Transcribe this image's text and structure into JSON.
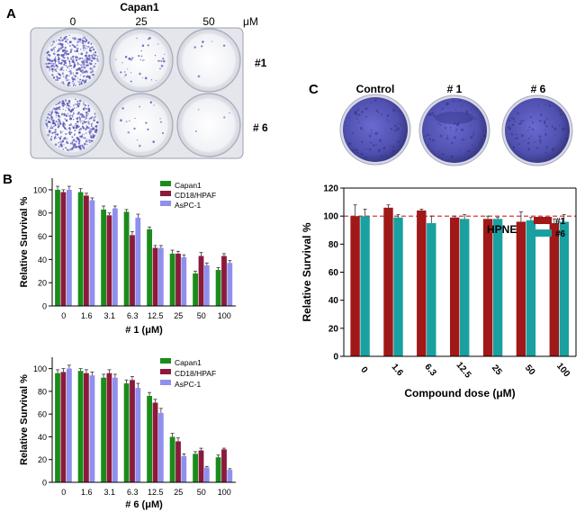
{
  "panels": {
    "A": {
      "letter": "A",
      "cell_line": "Capan1",
      "doses": [
        "0",
        "25",
        "50"
      ],
      "unit": "μM",
      "rows": [
        "#1",
        "# 6"
      ]
    },
    "B": {
      "letter": "B"
    },
    "C": {
      "letter": "C",
      "dish_labels": [
        "Control",
        "# 1",
        "# 6"
      ]
    }
  },
  "colors": {
    "capan1": "#1a8c1a",
    "cd18": "#8b1a3c",
    "aspc1": "#8f8fef",
    "hpne_1": "#a01818",
    "hpne_6": "#1aa0a0",
    "reference_line": "#cc2222",
    "stain": "#5a5ab8"
  },
  "chart_data": [
    {
      "id": "B1",
      "type": "bar",
      "title": "",
      "xlabel": "# 1 (μM)",
      "ylabel": "Relative Survival %",
      "categories": [
        "0",
        "1.6",
        "3.1",
        "6.3",
        "12.5",
        "25",
        "50",
        "100"
      ],
      "ylim": [
        0,
        110
      ],
      "yticks": [
        "0",
        "20",
        "40",
        "60",
        "80",
        "100"
      ],
      "legend": "top-right",
      "series": [
        {
          "name": "Capan1",
          "color": "#1a8c1a",
          "values": [
            100,
            98,
            83,
            81,
            66,
            45,
            28,
            31
          ],
          "errors": [
            3,
            3,
            3,
            2,
            2,
            3,
            2,
            2
          ]
        },
        {
          "name": "CD18/HPAF",
          "color": "#8b1a3c",
          "values": [
            98,
            95,
            78,
            61,
            50,
            45,
            43,
            43
          ],
          "errors": [
            2,
            2,
            2,
            3,
            2,
            2,
            3,
            2
          ]
        },
        {
          "name": "AsPC-1",
          "color": "#8f8fef",
          "values": [
            100,
            91,
            84,
            76,
            50,
            42,
            35,
            37
          ],
          "errors": [
            3,
            2,
            2,
            3,
            2,
            2,
            2,
            2
          ]
        }
      ]
    },
    {
      "id": "B2",
      "type": "bar",
      "title": "",
      "xlabel": "# 6 (μM)",
      "ylabel": "Relative Survival %",
      "categories": [
        "0",
        "1.6",
        "3.1",
        "6.3",
        "12.5",
        "25",
        "50",
        "100"
      ],
      "ylim": [
        0,
        110
      ],
      "yticks": [
        "0",
        "20",
        "40",
        "60",
        "80",
        "100"
      ],
      "legend": "top-right",
      "series": [
        {
          "name": "Capan1",
          "color": "#1a8c1a",
          "values": [
            96,
            98,
            92,
            87,
            76,
            40,
            25,
            22
          ],
          "errors": [
            3,
            2,
            3,
            3,
            3,
            3,
            2,
            2
          ]
        },
        {
          "name": "CD18/HPAF",
          "color": "#8b1a3c",
          "values": [
            97,
            96,
            96,
            90,
            70,
            36,
            28,
            29
          ],
          "errors": [
            3,
            3,
            3,
            3,
            3,
            3,
            2,
            1
          ]
        },
        {
          "name": "AsPC-1",
          "color": "#8f8fef",
          "values": [
            100,
            94,
            92,
            83,
            61,
            23,
            13,
            11
          ],
          "errors": [
            3,
            3,
            3,
            4,
            4,
            2,
            1,
            1
          ]
        }
      ]
    },
    {
      "id": "C",
      "type": "bar",
      "title": "HPNE",
      "xlabel": "Compound dose (μM)",
      "ylabel": "Relative Survival %",
      "categories": [
        "0",
        "1.6",
        "6.3",
        "12.5",
        "25",
        "50",
        "100"
      ],
      "ylim": [
        0,
        120
      ],
      "yticks": [
        "0",
        "20",
        "40",
        "60",
        "80",
        "100",
        "120"
      ],
      "reference_line": 100,
      "legend": "top-right",
      "series": [
        {
          "name": "#1",
          "color": "#a01818",
          "values": [
            100,
            106,
            104,
            99,
            98,
            96,
            95
          ],
          "errors": [
            8,
            2,
            1,
            1,
            2,
            7,
            3
          ]
        },
        {
          "name": "#6",
          "color": "#1aa0a0",
          "values": [
            100,
            99,
            95,
            98,
            98,
            97,
            96
          ],
          "errors": [
            5,
            2,
            5,
            3,
            1,
            2,
            5
          ]
        }
      ]
    }
  ]
}
